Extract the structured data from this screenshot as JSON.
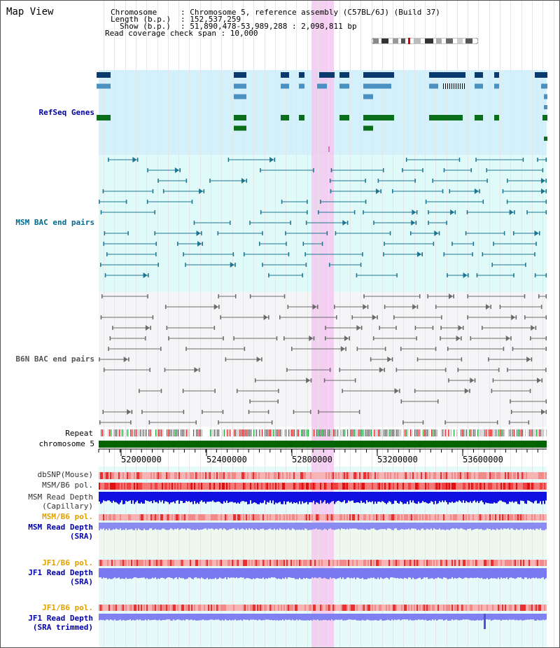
{
  "title": "Map View",
  "header": {
    "chromosome_key": "Chromosome",
    "chromosome_val": ": Chromosome 5, reference assembly (C57BL/6J) (Build 37)",
    "length_key": "Length (b.p.)",
    "length_val": ": 152,537,259",
    "show_key": "Show (b.p.)",
    "show_val": ": 51,890,478-53,989,288 : 2,098,811 bp",
    "coverage": "Read coverage check span : 10,000"
  },
  "tracks": {
    "refseq": "RefSeq Genes",
    "msm_bac": "MSM BAC end pairs",
    "b6n_bac": "B6N BAC end pairs",
    "repeat": "Repeat",
    "chromosome": "chromosome 5",
    "dbsnp": "dbSNP(Mouse)",
    "msm_b6_pol": "MSM/B6 pol.",
    "msm_depth_cap_1": "MSM Read Depth",
    "msm_depth_cap_2": "(Capillary)",
    "msm_b6_pol_2": "MSM/B6 pol.",
    "msm_depth_sra_1": "MSM Read Depth",
    "msm_depth_sra_2": "(SRA)",
    "jf1_b6_pol": "JF1/B6 pol.",
    "jf1_depth_sra_1": "JF1 Read Depth",
    "jf1_depth_sra_2": "(SRA)",
    "jf1_b6_pol_2": "JF1/B6 pol.",
    "jf1_depth_trim_1": "JF1 Read Depth",
    "jf1_depth_trim_2": "(SRA trimmed)"
  },
  "axis_ticks": [
    "52000000",
    "52400000",
    "52800000",
    "53200000",
    "53600000"
  ],
  "colors": {
    "refseq_label": "#0000aa",
    "msm_label": "#006b8e",
    "b6n_label": "#555555",
    "orange_label": "#e0a000",
    "blue_label": "#0000aa",
    "highlight": "#f5c8f0",
    "refseq_bg": "#d4f0fa",
    "msm_bg": "#e0fafa",
    "b6n_bg": "#f5f5f8",
    "chromosome_bar": "#006400"
  }
}
